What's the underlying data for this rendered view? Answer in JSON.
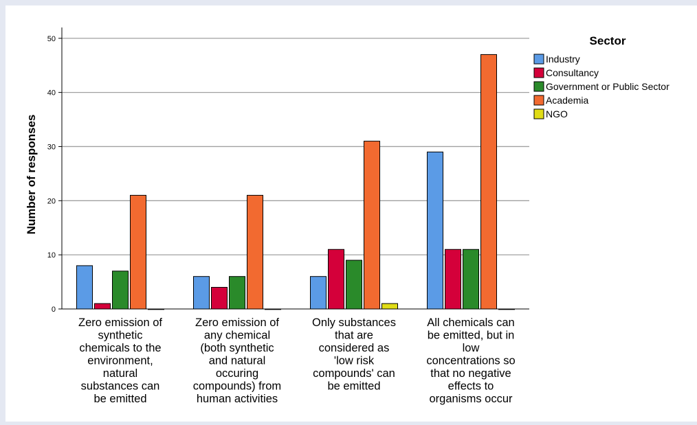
{
  "chart_data": {
    "type": "bar",
    "title": "",
    "xlabel": "",
    "ylabel": "Number of responses",
    "ylim": [
      0,
      52
    ],
    "yticks": [
      0,
      10,
      20,
      30,
      40,
      50
    ],
    "grid": true,
    "legend_position": "top-right",
    "legend_title": "Sector",
    "categories": [
      [
        "Zero emission of",
        "synthetic",
        "chemicals to the",
        "environment,",
        "natural",
        "substances can",
        "be emitted"
      ],
      [
        "Zero emission of",
        "any chemical",
        "(both synthetic",
        "and natural",
        "occuring",
        "compounds) from",
        "human activities"
      ],
      [
        "Only substances",
        "that are",
        "considered as",
        "'low risk",
        "compounds' can",
        "be emitted"
      ],
      [
        "All chemicals can",
        "be emitted, but in",
        "low",
        "concentrations so",
        "that no negative",
        "effects to",
        "organisms occur"
      ]
    ],
    "series": [
      {
        "name": "Industry",
        "color": "#5b9be6",
        "values": [
          8,
          6,
          6,
          29
        ]
      },
      {
        "name": "Consultancy",
        "color": "#d4003a",
        "values": [
          1,
          4,
          11,
          11
        ]
      },
      {
        "name": "Government or Public Sector",
        "color": "#2a8a2a",
        "values": [
          7,
          6,
          9,
          11
        ]
      },
      {
        "name": "Academia",
        "color": "#f26a30",
        "values": [
          21,
          21,
          31,
          47
        ]
      },
      {
        "name": "NGO",
        "color": "#e0dc16",
        "values": [
          0,
          0,
          1,
          0
        ]
      }
    ]
  }
}
